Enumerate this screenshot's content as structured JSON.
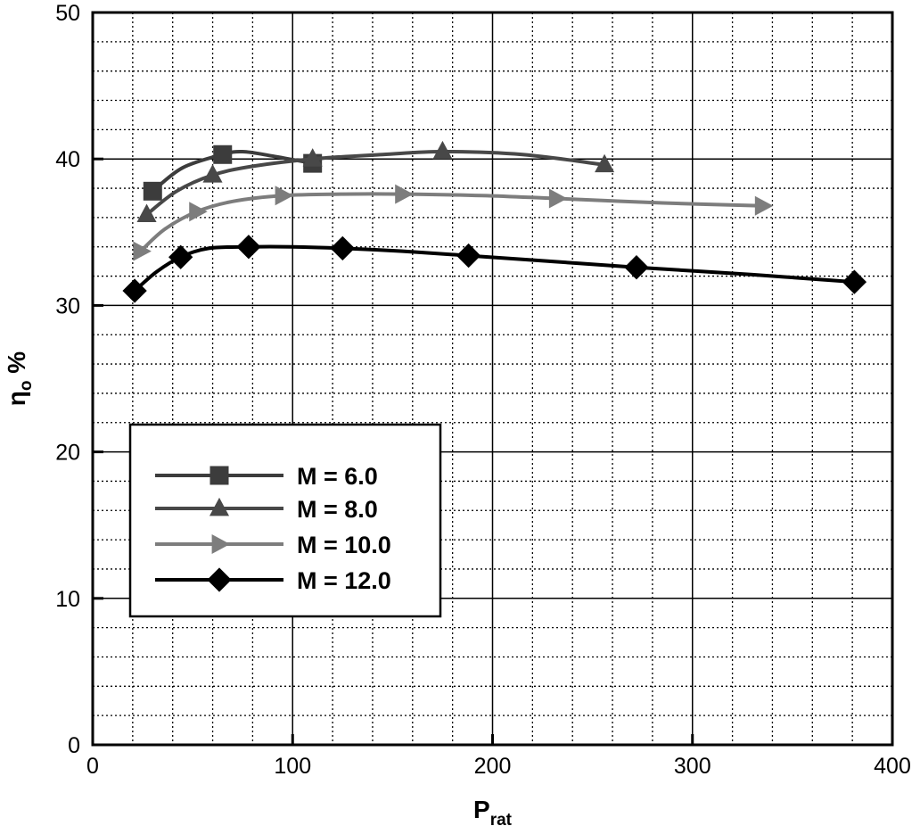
{
  "chart_data": {
    "type": "line",
    "title": "",
    "xlabel": {
      "main": "P",
      "sub": "rat"
    },
    "ylabel": {
      "main": "η",
      "sub": "o",
      "suffix": " %"
    },
    "xlim": [
      0,
      400
    ],
    "ylim": [
      0,
      50
    ],
    "x_ticks": [
      0,
      100,
      200,
      300,
      400
    ],
    "y_ticks": [
      0,
      10,
      20,
      30,
      40,
      50
    ],
    "x_tick_labels": [
      "0",
      "100",
      "200",
      "300",
      "400"
    ],
    "y_tick_labels": [
      "0",
      "10",
      "20",
      "30",
      "40",
      "50"
    ],
    "x_minor_step": 20,
    "y_minor_step": 2,
    "grid": true,
    "legend_position": "lower-left",
    "series": [
      {
        "name": "M = 6.0",
        "marker": "square",
        "color": "#3c3c3c",
        "points": [
          [
            30,
            37.8
          ],
          [
            65,
            40.3
          ],
          [
            110,
            39.7
          ]
        ],
        "curve": [
          [
            30,
            37.8
          ],
          [
            45,
            39.4
          ],
          [
            65,
            40.3
          ],
          [
            75,
            40.5
          ],
          [
            90,
            40.2
          ],
          [
            110,
            39.7
          ]
        ]
      },
      {
        "name": "M = 8.0",
        "marker": "triangle",
        "color": "#484848",
        "points": [
          [
            27,
            36.2
          ],
          [
            60,
            38.9
          ],
          [
            110,
            40.0
          ],
          [
            175,
            40.5
          ],
          [
            256,
            39.6
          ]
        ],
        "curve": [
          [
            27,
            36.2
          ],
          [
            42,
            37.8
          ],
          [
            60,
            38.9
          ],
          [
            80,
            39.5
          ],
          [
            110,
            40.0
          ],
          [
            145,
            40.3
          ],
          [
            175,
            40.5
          ],
          [
            215,
            40.3
          ],
          [
            256,
            39.6
          ]
        ]
      },
      {
        "name": "M = 10.0",
        "marker": "triangle-right",
        "color": "#7d7d7d",
        "points": [
          [
            24,
            33.7
          ],
          [
            52,
            36.4
          ],
          [
            95,
            37.5
          ],
          [
            155,
            37.6
          ],
          [
            232,
            37.3
          ],
          [
            335,
            36.8
          ]
        ],
        "curve": [
          [
            24,
            33.7
          ],
          [
            36,
            35.2
          ],
          [
            52,
            36.4
          ],
          [
            70,
            37.1
          ],
          [
            95,
            37.5
          ],
          [
            125,
            37.6
          ],
          [
            155,
            37.6
          ],
          [
            195,
            37.5
          ],
          [
            232,
            37.3
          ],
          [
            285,
            37.0
          ],
          [
            335,
            36.8
          ]
        ]
      },
      {
        "name": "M = 12.0",
        "marker": "diamond",
        "color": "#000000",
        "points": [
          [
            21,
            31.0
          ],
          [
            44,
            33.3
          ],
          [
            78,
            34.0
          ],
          [
            125,
            33.9
          ],
          [
            188,
            33.4
          ],
          [
            272,
            32.6
          ],
          [
            381,
            31.6
          ]
        ],
        "curve": [
          [
            21,
            31.0
          ],
          [
            32,
            32.3
          ],
          [
            44,
            33.3
          ],
          [
            58,
            33.9
          ],
          [
            78,
            34.0
          ],
          [
            100,
            34.0
          ],
          [
            125,
            33.9
          ],
          [
            155,
            33.7
          ],
          [
            188,
            33.4
          ],
          [
            230,
            33.0
          ],
          [
            272,
            32.6
          ],
          [
            330,
            32.1
          ],
          [
            381,
            31.6
          ]
        ]
      }
    ]
  }
}
